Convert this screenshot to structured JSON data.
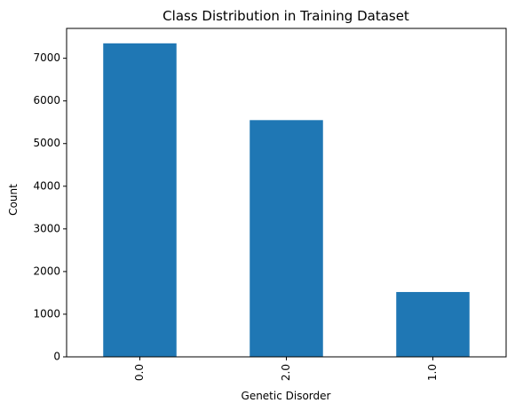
{
  "chart_data": {
    "type": "bar",
    "title": "Class Distribution in Training Dataset",
    "xlabel": "Genetic Disorder",
    "ylabel": "Count",
    "categories": [
      "0.0",
      "2.0",
      "1.0"
    ],
    "values": [
      7350,
      5550,
      1520
    ],
    "ylim": [
      0,
      7700
    ],
    "yticks": [
      0,
      1000,
      2000,
      3000,
      4000,
      5000,
      6000,
      7000
    ],
    "grid": false,
    "legend": "none",
    "bar_color": "#1f77b4"
  }
}
